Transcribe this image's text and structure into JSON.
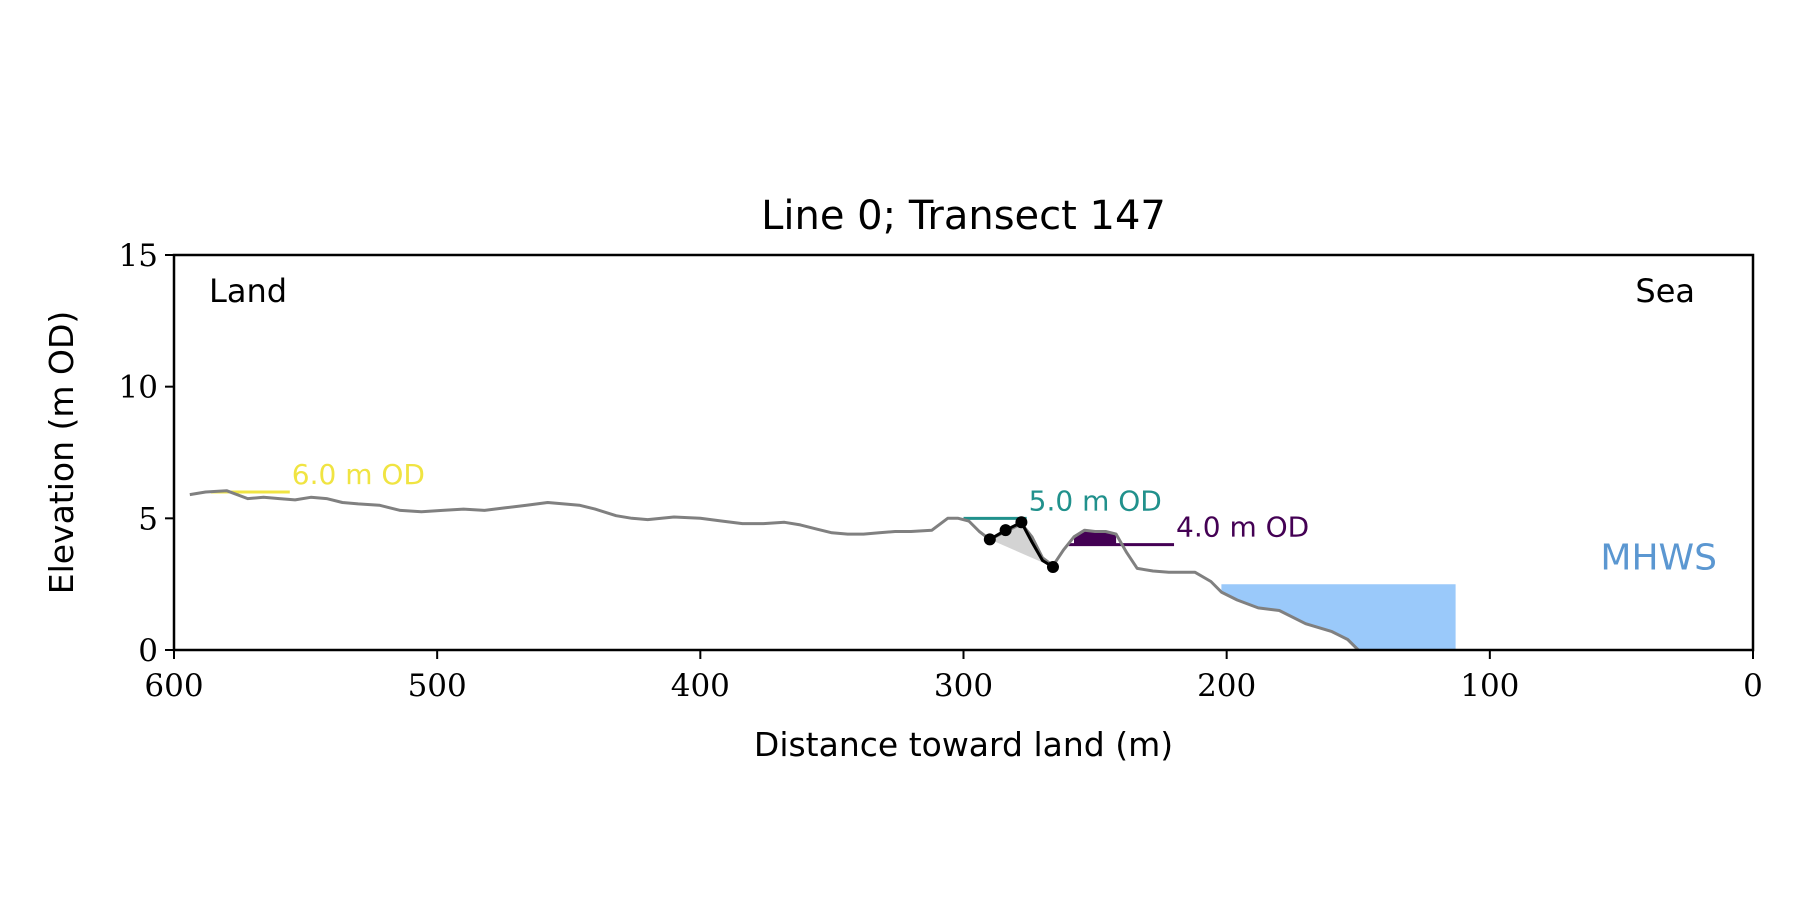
{
  "chart_data": {
    "type": "line",
    "title": "Line 0; Transect 147",
    "xlabel": "Distance toward land (m)",
    "ylabel": "Elevation (m OD)",
    "xlim": [
      600,
      0
    ],
    "ylim": [
      0,
      15
    ],
    "x_ticks": [
      600,
      500,
      400,
      300,
      200,
      100,
      0
    ],
    "y_ticks": [
      0,
      5,
      10,
      15
    ],
    "grid": false,
    "annotations": {
      "land_label": "Land",
      "sea_label": "Sea",
      "mhws_label": "MHWS"
    },
    "colors": {
      "profile": "#808080",
      "cliff": "#000000",
      "cliff_fill": "#d3d3d3",
      "level_6": "#f0e442",
      "level_5": "#21918c",
      "level_4": "#440154",
      "level_4_fill": "#440154",
      "sea_fill": "#9ac9fa",
      "mhws_text": "#5b97d1"
    },
    "profile": {
      "x": [
        594,
        588,
        580,
        572,
        566,
        560,
        554,
        548,
        542,
        536,
        530,
        522,
        514,
        506,
        498,
        490,
        482,
        474,
        466,
        458,
        452,
        446,
        440,
        432,
        426,
        420,
        410,
        400,
        392,
        384,
        376,
        368,
        362,
        356,
        350,
        344,
        338,
        332,
        326,
        320,
        312,
        306,
        302,
        298,
        294,
        290,
        286,
        282,
        278,
        274,
        270,
        266,
        262,
        258,
        254,
        250,
        246,
        242,
        238,
        234,
        228,
        222,
        216,
        212,
        206,
        202,
        196,
        188,
        180,
        170,
        160,
        154,
        150
      ],
      "y": [
        5.9,
        6.0,
        6.05,
        5.75,
        5.8,
        5.75,
        5.7,
        5.8,
        5.75,
        5.6,
        5.55,
        5.5,
        5.3,
        5.25,
        5.3,
        5.35,
        5.3,
        5.4,
        5.5,
        5.6,
        5.55,
        5.5,
        5.35,
        5.1,
        5.0,
        4.95,
        5.05,
        5.0,
        4.9,
        4.8,
        4.8,
        4.85,
        4.75,
        4.6,
        4.45,
        4.4,
        4.4,
        4.45,
        4.5,
        4.5,
        4.55,
        5.0,
        5.0,
        4.9,
        4.5,
        4.2,
        4.4,
        4.6,
        4.8,
        4.3,
        3.5,
        3.2,
        3.8,
        4.3,
        4.55,
        4.5,
        4.5,
        4.4,
        3.7,
        3.1,
        3.0,
        2.95,
        2.95,
        2.95,
        2.6,
        2.2,
        1.9,
        1.6,
        1.5,
        1.0,
        0.7,
        0.4,
        0.0
      ]
    },
    "cliff_line": {
      "x": [
        290,
        284,
        278,
        274,
        270,
        266
      ],
      "y": [
        4.2,
        4.55,
        4.85,
        4.1,
        3.4,
        3.15
      ]
    },
    "cliff_points": {
      "x": [
        290,
        284,
        278,
        266
      ],
      "y": [
        4.2,
        4.55,
        4.85,
        3.15
      ]
    },
    "levels": [
      {
        "label": "6.0 m OD",
        "value": 6.0,
        "x_start": 586,
        "x_end": 556,
        "color_key": "level_6"
      },
      {
        "label": "5.0 m OD",
        "value": 5.0,
        "x_start": 300,
        "x_end": 276,
        "color_key": "level_5"
      },
      {
        "label": "4.0 m OD",
        "value": 4.0,
        "x_start": 260,
        "x_end": 220,
        "color_key": "level_4"
      }
    ],
    "mhws": {
      "x_start": 202,
      "x_end": 113,
      "value": 2.5
    }
  }
}
